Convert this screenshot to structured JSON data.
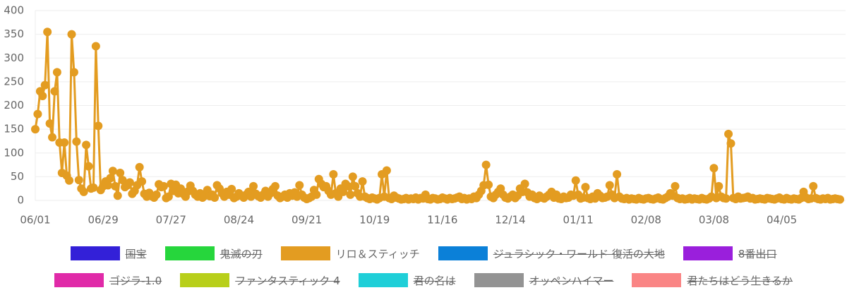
{
  "chart_data": {
    "type": "line",
    "categories": [
      "06/01",
      null,
      null,
      null,
      null,
      null,
      null,
      null,
      null,
      null,
      null,
      null,
      null,
      null,
      null,
      null,
      null,
      null,
      null,
      null,
      null,
      null,
      null,
      null,
      null,
      null,
      null,
      null,
      "06/29",
      null,
      null,
      null,
      null,
      null,
      null,
      null,
      null,
      null,
      null,
      null,
      null,
      null,
      null,
      null,
      null,
      null,
      null,
      null,
      null,
      null,
      null,
      null,
      null,
      null,
      null,
      null,
      "07/27",
      null,
      null,
      null,
      null,
      null,
      null,
      null,
      null,
      null,
      null,
      null,
      null,
      null,
      null,
      null,
      null,
      null,
      null,
      null,
      null,
      null,
      null,
      null,
      null,
      null,
      null,
      null,
      "08/24",
      null,
      null,
      null,
      null,
      null,
      null,
      null,
      null,
      null,
      null,
      null,
      null,
      null,
      null,
      null,
      null,
      null,
      null,
      null,
      null,
      null,
      null,
      null,
      null,
      null,
      null,
      null,
      "09/21",
      null,
      null,
      null,
      null,
      null,
      null,
      null,
      null,
      null,
      null,
      null,
      null,
      null,
      null,
      null,
      null,
      null,
      null,
      null,
      null,
      null,
      null,
      null,
      null,
      null,
      null,
      null,
      "10/19",
      null,
      null,
      null,
      null,
      null,
      null,
      null,
      null,
      null,
      null,
      null,
      null,
      null,
      null,
      null,
      null,
      null,
      null,
      null,
      null,
      null,
      null,
      null,
      null,
      null,
      null,
      null,
      "11/16",
      null,
      null,
      null,
      null,
      null,
      null,
      null,
      null,
      null,
      null,
      null,
      null,
      null,
      null,
      null,
      null,
      null,
      null,
      null,
      null,
      null,
      null,
      null,
      null,
      null,
      null,
      null,
      "12/14",
      null,
      null,
      null,
      null,
      null,
      null,
      null,
      null,
      null,
      null,
      null,
      null,
      null,
      null,
      null,
      null,
      null,
      null,
      null,
      null,
      null,
      null,
      null,
      null,
      null,
      null,
      null,
      "01/11",
      null,
      null,
      null,
      null,
      null,
      null,
      null,
      null,
      null,
      null,
      null,
      null,
      null,
      null,
      null,
      null,
      null,
      null,
      null,
      null,
      null,
      null,
      null,
      null,
      null,
      null,
      null,
      "02/08",
      null,
      null,
      null,
      null,
      null,
      null,
      null,
      null,
      null,
      null,
      null,
      null,
      null,
      null,
      null,
      null,
      null,
      null,
      null,
      null,
      null,
      null,
      null,
      null,
      null,
      null,
      null,
      "03/08",
      null,
      null,
      null,
      null,
      null,
      null,
      null,
      null,
      null,
      null,
      null,
      null,
      null,
      null,
      null,
      null,
      null,
      null,
      null,
      null,
      null,
      null,
      null,
      null,
      null,
      null,
      null,
      "04/05",
      null,
      null,
      null,
      null,
      null,
      null,
      null,
      null,
      null,
      null,
      null,
      null,
      null,
      null,
      null,
      null,
      null,
      null,
      null,
      null,
      null,
      null,
      null,
      null
    ],
    "series": [
      {
        "name": "国宝",
        "color": "#3320d8",
        "hidden": true
      },
      {
        "name": "鬼滅の刃",
        "color": "#26d63c",
        "hidden": true
      },
      {
        "name": "リロ＆スティッチ",
        "color": "#e39c21",
        "hidden": false,
        "values": [
          150,
          182,
          230,
          220,
          243,
          355,
          162,
          133,
          230,
          270,
          122,
          58,
          122,
          52,
          42,
          350,
          270,
          124,
          43,
          25,
          18,
          117,
          72,
          25,
          27,
          325,
          157,
          22,
          30,
          40,
          32,
          47,
          62,
          30,
          10,
          58,
          43,
          28,
          32,
          38,
          14,
          20,
          32,
          70,
          40,
          14,
          8,
          16,
          9,
          6,
          12,
          34,
          28,
          30,
          5,
          8,
          35,
          20,
          33,
          15,
          25,
          14,
          8,
          19,
          31,
          20,
          12,
          8,
          15,
          6,
          10,
          22,
          9,
          12,
          6,
          32,
          25,
          15,
          8,
          18,
          12,
          24,
          5,
          8,
          15,
          10,
          6,
          12,
          18,
          8,
          30,
          14,
          9,
          6,
          12,
          20,
          8,
          15,
          24,
          30,
          10,
          5,
          8,
          12,
          6,
          15,
          10,
          17,
          8,
          32,
          12,
          6,
          3,
          5,
          8,
          22,
          12,
          45,
          35,
          28,
          30,
          20,
          12,
          55,
          15,
          8,
          25,
          18,
          35,
          30,
          12,
          50,
          30,
          15,
          8,
          40,
          8,
          5,
          3,
          6,
          4,
          2,
          5,
          55,
          8,
          63,
          5,
          3,
          10,
          6,
          4,
          2,
          3,
          5,
          2,
          4,
          3,
          6,
          2,
          5,
          4,
          12,
          3,
          2,
          5,
          4,
          2,
          3,
          6,
          4,
          2,
          5,
          3,
          4,
          6,
          8,
          3,
          5,
          2,
          4,
          3,
          8,
          5,
          12,
          20,
          32,
          75,
          33,
          8,
          5,
          12,
          18,
          25,
          12,
          6,
          4,
          8,
          12,
          5,
          10,
          25,
          18,
          35,
          17,
          8,
          12,
          5,
          3,
          10,
          6,
          4,
          8,
          12,
          18,
          6,
          12,
          4,
          3,
          8,
          5,
          6,
          12,
          10,
          42,
          12,
          4,
          6,
          28,
          5,
          3,
          8,
          4,
          15,
          10,
          5,
          6,
          8,
          32,
          12,
          5,
          55,
          8,
          4,
          3,
          5,
          2,
          4,
          3,
          2,
          5,
          3,
          2,
          4,
          5,
          3,
          2,
          4,
          6,
          3,
          2,
          5,
          8,
          15,
          10,
          30,
          5,
          3,
          4,
          2,
          3,
          5,
          2,
          4,
          3,
          2,
          5,
          3,
          2,
          4,
          8,
          68,
          5,
          30,
          8,
          5,
          4,
          140,
          120,
          5,
          3,
          8,
          4,
          5,
          6,
          8,
          4,
          5,
          2,
          3,
          4,
          3,
          2,
          5,
          4,
          3,
          2,
          4,
          6,
          3,
          2,
          5,
          3,
          2,
          4,
          3,
          2,
          5,
          18,
          6,
          3,
          4,
          30,
          5,
          3,
          2,
          4,
          3,
          5,
          2,
          3,
          4,
          3,
          2
        ]
      },
      {
        "name": "ジュラシック・ワールド 復活の大地",
        "color": "#0b80d8",
        "hidden": true
      },
      {
        "name": "8番出口",
        "color": "#9a1fdc",
        "hidden": true
      },
      {
        "name": "ゴジラ-1.0",
        "color": "#e02aa8",
        "hidden": true
      },
      {
        "name": "ファンタスティック 4",
        "color": "#b8cf1a",
        "hidden": true
      },
      {
        "name": "君の名は",
        "color": "#1fcfd8",
        "hidden": true
      },
      {
        "name": "オッペンハイマー",
        "color": "#939393",
        "hidden": true
      },
      {
        "name": "君たちはどう生きるか",
        "color": "#fa8585",
        "hidden": true
      }
    ],
    "ylim": [
      0,
      400
    ],
    "yticks": [
      0,
      50,
      100,
      150,
      200,
      250,
      300,
      350,
      400
    ],
    "grid": true
  }
}
